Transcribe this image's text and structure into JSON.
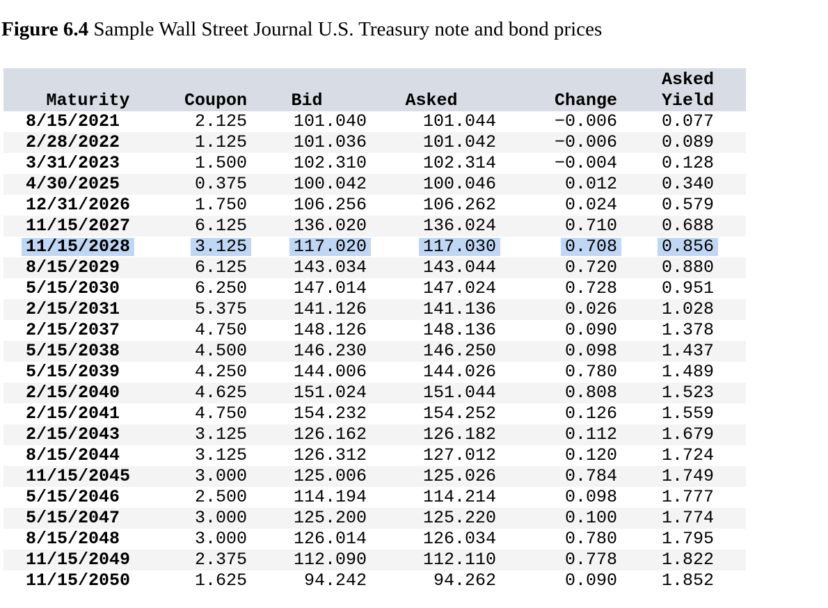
{
  "figure": {
    "label": "Figure 6.4",
    "caption": "Sample Wall Street Journal U.S. Treasury note and bond prices"
  },
  "table": {
    "header": {
      "maturity": "Maturity",
      "coupon": "Coupon",
      "bid": "Bid",
      "asked": "Asked",
      "change": "Change",
      "asked_yield_line1": "Asked",
      "asked_yield_line2": "Yield"
    },
    "highlighted_row_maturity": "11/15/2028",
    "rows": [
      {
        "maturity": "8/15/2021",
        "coupon": "2.125",
        "bid": "101.040",
        "asked": "101.044",
        "change": "−0.006",
        "asked_yield": "0.077",
        "highlighted": false
      },
      {
        "maturity": "2/28/2022",
        "coupon": "1.125",
        "bid": "101.036",
        "asked": "101.042",
        "change": "−0.006",
        "asked_yield": "0.089",
        "highlighted": false
      },
      {
        "maturity": "3/31/2023",
        "coupon": "1.500",
        "bid": "102.310",
        "asked": "102.314",
        "change": "−0.004",
        "asked_yield": "0.128",
        "highlighted": false
      },
      {
        "maturity": "4/30/2025",
        "coupon": "0.375",
        "bid": "100.042",
        "asked": "100.046",
        "change": "0.012",
        "asked_yield": "0.340",
        "highlighted": false
      },
      {
        "maturity": "12/31/2026",
        "coupon": "1.750",
        "bid": "106.256",
        "asked": "106.262",
        "change": "0.024",
        "asked_yield": "0.579",
        "highlighted": false
      },
      {
        "maturity": "11/15/2027",
        "coupon": "6.125",
        "bid": "136.020",
        "asked": "136.024",
        "change": "0.710",
        "asked_yield": "0.688",
        "highlighted": false
      },
      {
        "maturity": "11/15/2028",
        "coupon": "3.125",
        "bid": "117.020",
        "asked": "117.030",
        "change": "0.708",
        "asked_yield": "0.856",
        "highlighted": true
      },
      {
        "maturity": "8/15/2029",
        "coupon": "6.125",
        "bid": "143.034",
        "asked": "143.044",
        "change": "0.720",
        "asked_yield": "0.880",
        "highlighted": false
      },
      {
        "maturity": "5/15/2030",
        "coupon": "6.250",
        "bid": "147.014",
        "asked": "147.024",
        "change": "0.728",
        "asked_yield": "0.951",
        "highlighted": false
      },
      {
        "maturity": "2/15/2031",
        "coupon": "5.375",
        "bid": "141.126",
        "asked": "141.136",
        "change": "0.026",
        "asked_yield": "1.028",
        "highlighted": false
      },
      {
        "maturity": "2/15/2037",
        "coupon": "4.750",
        "bid": "148.126",
        "asked": "148.136",
        "change": "0.090",
        "asked_yield": "1.378",
        "highlighted": false
      },
      {
        "maturity": "5/15/2038",
        "coupon": "4.500",
        "bid": "146.230",
        "asked": "146.250",
        "change": "0.098",
        "asked_yield": "1.437",
        "highlighted": false
      },
      {
        "maturity": "5/15/2039",
        "coupon": "4.250",
        "bid": "144.006",
        "asked": "144.026",
        "change": "0.780",
        "asked_yield": "1.489",
        "highlighted": false
      },
      {
        "maturity": "2/15/2040",
        "coupon": "4.625",
        "bid": "151.024",
        "asked": "151.044",
        "change": "0.808",
        "asked_yield": "1.523",
        "highlighted": false
      },
      {
        "maturity": "2/15/2041",
        "coupon": "4.750",
        "bid": "154.232",
        "asked": "154.252",
        "change": "0.126",
        "asked_yield": "1.559",
        "highlighted": false
      },
      {
        "maturity": "2/15/2043",
        "coupon": "3.125",
        "bid": "126.162",
        "asked": "126.182",
        "change": "0.112",
        "asked_yield": "1.679",
        "highlighted": false
      },
      {
        "maturity": "8/15/2044",
        "coupon": "3.125",
        "bid": "126.312",
        "asked": "127.012",
        "change": "0.120",
        "asked_yield": "1.724",
        "highlighted": false
      },
      {
        "maturity": "11/15/2045",
        "coupon": "3.000",
        "bid": "125.006",
        "asked": "125.026",
        "change": "0.784",
        "asked_yield": "1.749",
        "highlighted": false
      },
      {
        "maturity": "5/15/2046",
        "coupon": "2.500",
        "bid": "114.194",
        "asked": "114.214",
        "change": "0.098",
        "asked_yield": "1.777",
        "highlighted": false
      },
      {
        "maturity": "5/15/2047",
        "coupon": "3.000",
        "bid": "125.200",
        "asked": "125.220",
        "change": "0.100",
        "asked_yield": "1.774",
        "highlighted": false
      },
      {
        "maturity": "8/15/2048",
        "coupon": "3.000",
        "bid": "126.014",
        "asked": "126.034",
        "change": "0.780",
        "asked_yield": "1.795",
        "highlighted": false
      },
      {
        "maturity": "11/15/2049",
        "coupon": "2.375",
        "bid": "112.090",
        "asked": "112.110",
        "change": "0.778",
        "asked_yield": "1.822",
        "highlighted": false
      },
      {
        "maturity": "11/15/2050",
        "coupon": "1.625",
        "bid": "94.242",
        "asked": "94.262",
        "change": "0.090",
        "asked_yield": "1.852",
        "highlighted": false
      }
    ]
  },
  "colors": {
    "header_background": "#d8dce4",
    "row_stripe": "#f4f4f5",
    "highlight": "#bfd6f4",
    "text": "#000000",
    "page_background": "#ffffff"
  }
}
